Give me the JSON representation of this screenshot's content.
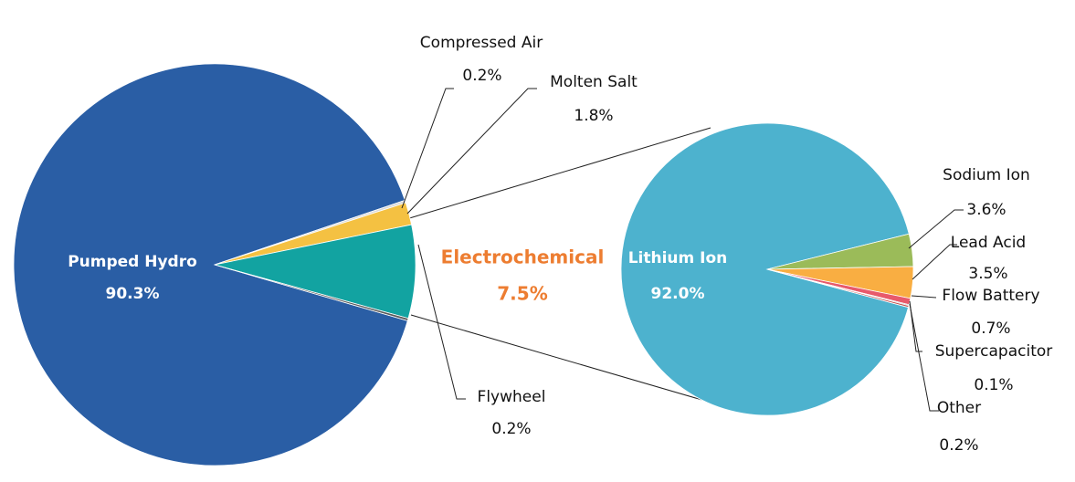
{
  "chart_data": [
    {
      "type": "pie",
      "categories": [
        "Pumped Hydro",
        "Compressed Air",
        "Molten Salt",
        "Electrochemical",
        "Flywheel"
      ],
      "values": [
        90.3,
        0.2,
        1.8,
        7.5,
        0.2
      ],
      "value_labels": [
        "90.3%",
        "0.2%",
        "1.8%",
        "7.5%",
        "0.2%"
      ],
      "colors": [
        "#2a5ea5",
        "#d9d9d9",
        "#f4c142",
        "#12a3a1",
        "#5a5a5a"
      ]
    },
    {
      "type": "pie",
      "categories": [
        "Lithium Ion",
        "Sodium Ion",
        "Lead Acid",
        "Flow Battery",
        "Supercapacitor",
        "Other"
      ],
      "values": [
        92.0,
        3.6,
        3.5,
        0.7,
        0.1,
        0.2
      ],
      "value_labels": [
        "92.0%",
        "3.6%",
        "3.5%",
        "0.7%",
        "0.1%",
        "0.2%"
      ],
      "colors": [
        "#4db2ce",
        "#9bbb59",
        "#f9ae42",
        "#e85a6b",
        "#7f7f7f",
        "#c0504d"
      ]
    }
  ]
}
